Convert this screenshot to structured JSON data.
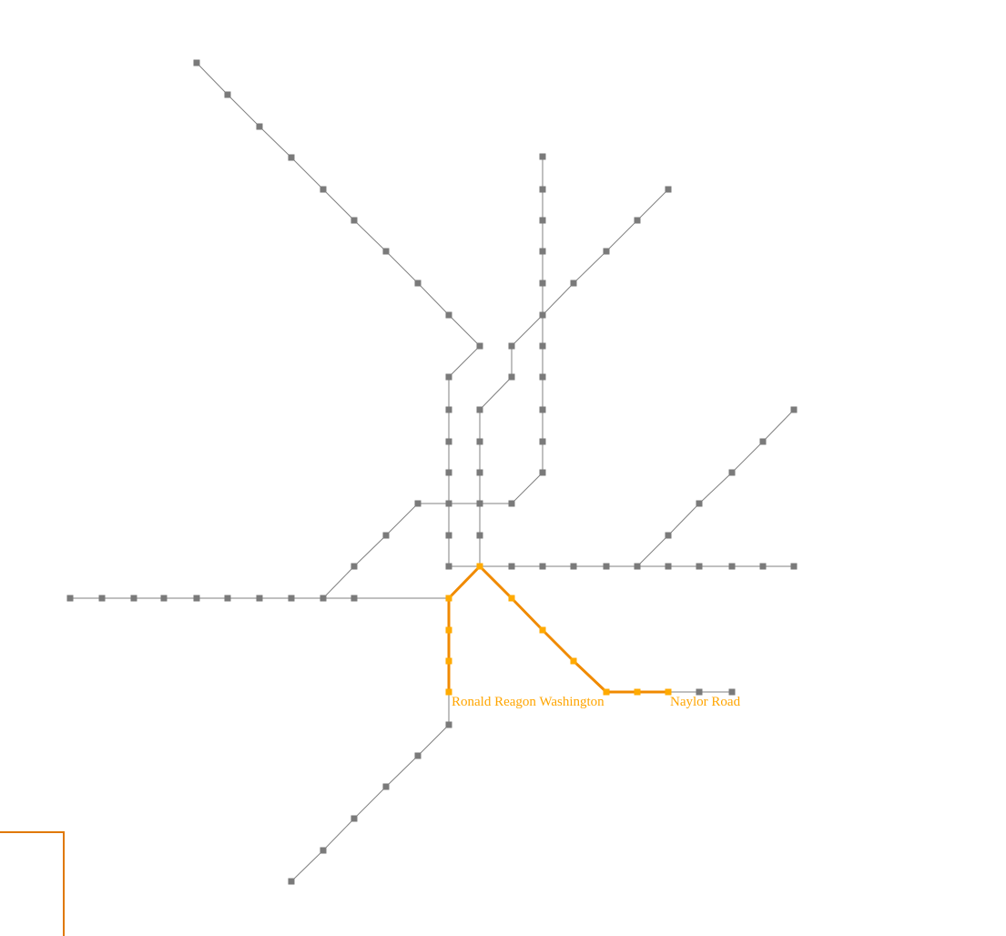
{
  "map": {
    "colors": {
      "track": "#808080",
      "station": "#7a7a7a",
      "route": "#f08a00",
      "route_station": "#ffaa00",
      "route_label": "#ffa500",
      "legend_box": "#e07800"
    },
    "route": {
      "origin_label": "Ronald Reagon Washington",
      "destination_label": "Naylor Road"
    }
  }
}
